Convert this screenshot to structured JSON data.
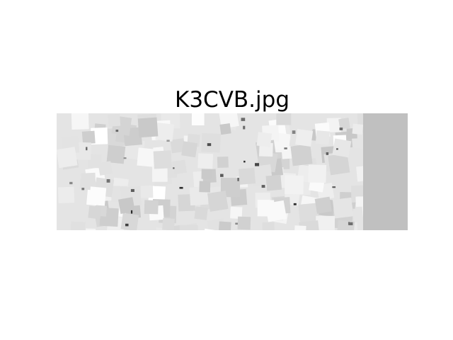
{
  "title": "K3CVB.jpg"
}
